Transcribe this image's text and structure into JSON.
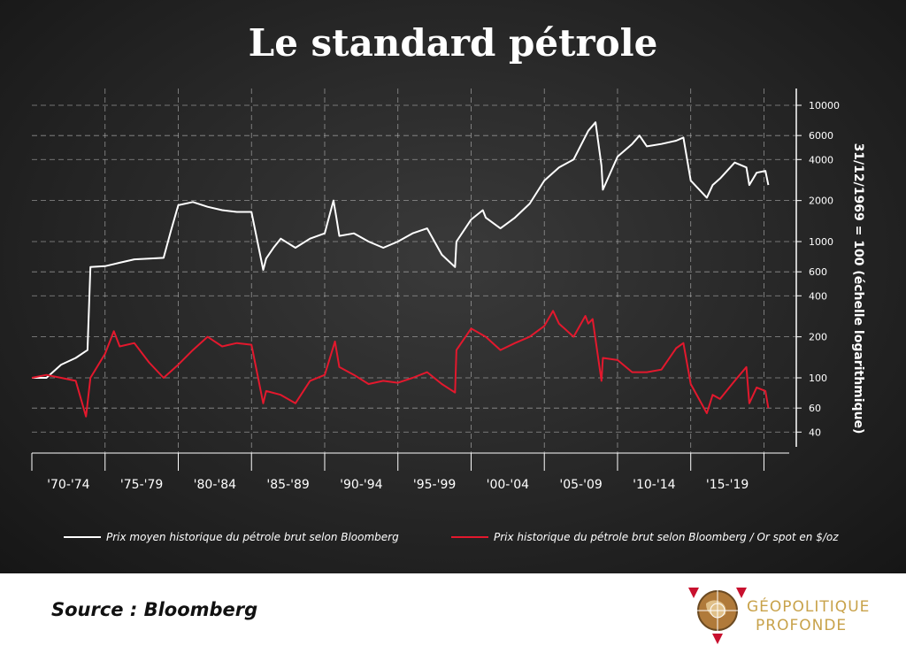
{
  "title": "Le standard pétrole",
  "source": "Source : Bloomberg",
  "logo": {
    "line1": "GÉOPOLITIQUE",
    "line2": "PROFONDE"
  },
  "chart_data": {
    "type": "line",
    "yscale": "log",
    "ylabel": "31/12/1969 = 100 (échelle logarithmique)",
    "ylim": [
      30,
      12000
    ],
    "ytick_values": [
      10000,
      6000,
      4000,
      2000,
      1000,
      600,
      400,
      200,
      100,
      60,
      40
    ],
    "ytick_labels": [
      "10000",
      "6000",
      "4000",
      "2000",
      "1000",
      "600",
      "400",
      "200",
      "100",
      "60",
      "40"
    ],
    "xlim": [
      1970,
      2021
    ],
    "categories": [
      "'70-'74",
      "'75-'79",
      "'80-'84",
      "'85-'89",
      "'90-'94",
      "'95-'99",
      "'00-'04",
      "'05-'09",
      "'10-'14",
      "'15-'19"
    ],
    "grid": true,
    "legend_position": "bottom",
    "colors": {
      "oil": "#ffffff",
      "ratio": "#e3182d",
      "grid": "#bdbdbd",
      "axis": "#ffffff"
    },
    "series": [
      {
        "name": "Prix moyen historique du pétrole brut selon Bloomberg",
        "x": [
          1970,
          1971,
          1972,
          1973,
          1973.8,
          1974,
          1975,
          1976,
          1977,
          1978,
          1979,
          1979.5,
          1980,
          1981,
          1982,
          1983,
          1984,
          1985,
          1985.8,
          1986,
          1986.5,
          1987,
          1988,
          1989,
          1990,
          1990.6,
          1990.8,
          1991,
          1992,
          1993,
          1994,
          1995,
          1996,
          1997,
          1998,
          1998.9,
          1999,
          2000,
          2000.8,
          2001,
          2002,
          2003,
          2004,
          2005,
          2006,
          2007,
          2008,
          2008.5,
          2008.9,
          2009,
          2010,
          2011,
          2011.5,
          2012,
          2013,
          2014,
          2014.5,
          2015,
          2016.1,
          2016.5,
          2017,
          2018,
          2018.8,
          2019,
          2019.5,
          2020.1,
          2020.3
        ],
        "y": [
          100,
          100,
          125,
          140,
          160,
          650,
          660,
          700,
          740,
          750,
          760,
          1200,
          1850,
          1950,
          1800,
          1700,
          1650,
          1650,
          620,
          750,
          900,
          1050,
          900,
          1050,
          1150,
          2000,
          1500,
          1100,
          1150,
          1000,
          900,
          1000,
          1150,
          1250,
          800,
          650,
          1000,
          1450,
          1700,
          1500,
          1250,
          1500,
          1900,
          2800,
          3500,
          4000,
          6500,
          7500,
          3600,
          2400,
          4200,
          5200,
          6000,
          5000,
          5200,
          5500,
          5800,
          2800,
          2100,
          2600,
          2900,
          3800,
          3500,
          2600,
          3200,
          3300,
          2600
        ]
      },
      {
        "name": "Prix historique du pétrole brut selon Bloomberg / Or spot en $/oz",
        "x": [
          1970,
          1971,
          1972,
          1973,
          1973.7,
          1974,
          1975,
          1975.6,
          1976,
          1977,
          1978,
          1979,
          1980,
          1981,
          1982,
          1983,
          1984,
          1985,
          1985.8,
          1986,
          1987,
          1988,
          1989,
          1990,
          1990.7,
          1991,
          1992,
          1993,
          1994,
          1995,
          1996,
          1997,
          1998,
          1998.9,
          1999,
          2000,
          2001,
          2002,
          2003,
          2004,
          2005,
          2005.6,
          2006,
          2007,
          2007.8,
          2008,
          2008.3,
          2008.9,
          2009,
          2010,
          2011,
          2012,
          2013,
          2014,
          2014.5,
          2015,
          2016.1,
          2016.5,
          2017,
          2018,
          2018.8,
          2019,
          2019.5,
          2020.1,
          2020.3
        ],
        "y": [
          100,
          105,
          100,
          95,
          52,
          100,
          150,
          220,
          170,
          180,
          130,
          100,
          125,
          160,
          200,
          170,
          180,
          175,
          65,
          80,
          75,
          65,
          95,
          105,
          185,
          120,
          105,
          90,
          95,
          92,
          100,
          110,
          90,
          78,
          160,
          230,
          200,
          160,
          180,
          200,
          240,
          310,
          250,
          200,
          285,
          250,
          270,
          95,
          140,
          135,
          110,
          110,
          115,
          165,
          180,
          90,
          55,
          75,
          70,
          95,
          120,
          65,
          85,
          80,
          60
        ]
      }
    ]
  }
}
